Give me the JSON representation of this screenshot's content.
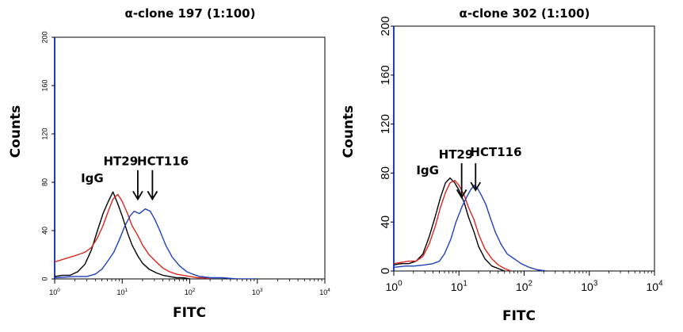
{
  "chart_data": [
    {
      "type": "line",
      "title": "α-clone 197 (1:100)",
      "xlabel": "FITC",
      "ylabel": "Counts",
      "xscale": "log",
      "xlim": [
        1,
        10000
      ],
      "ylim": [
        0,
        200
      ],
      "x_ticks": [
        {
          "base": "10",
          "exp": "0",
          "value": 1
        },
        {
          "base": "10",
          "exp": "1",
          "value": 10
        },
        {
          "base": "10",
          "exp": "2",
          "value": 100
        },
        {
          "base": "10",
          "exp": "3",
          "value": 1000
        },
        {
          "base": "10",
          "exp": "4",
          "value": 10000
        }
      ],
      "y_ticks": [
        {
          "label": "0",
          "value": 0
        },
        {
          "label": "40",
          "value": 40
        },
        {
          "label": "80",
          "value": 80
        },
        {
          "label": "120",
          "value": 120
        },
        {
          "label": "160",
          "value": 160
        },
        {
          "label": "200",
          "value": 200
        }
      ],
      "annotations": [
        {
          "text": "IgG",
          "x": 3.6,
          "y": 80
        },
        {
          "text": "HT29",
          "x": 9.5,
          "y": 94
        },
        {
          "text": "HCT116",
          "x": 40,
          "y": 94
        }
      ],
      "arrows": [
        {
          "x": 17,
          "y_from": 90,
          "y_to": 66
        },
        {
          "x": 28,
          "y_from": 90,
          "y_to": 66
        }
      ],
      "series": [
        {
          "name": "IgG",
          "color": "#000000",
          "x": [
            1,
            1.3,
            1.7,
            2.2,
            2.8,
            3.5,
            4.3,
            5.2,
            6.2,
            7.3,
            8.6,
            10,
            12,
            14,
            17,
            20,
            25,
            32,
            40,
            50,
            63,
            80,
            100
          ],
          "y": [
            2,
            3,
            3,
            6,
            12,
            24,
            40,
            54,
            64,
            72,
            62,
            52,
            38,
            28,
            19,
            13,
            8,
            5,
            3,
            2,
            1,
            1,
            0
          ]
        },
        {
          "name": "HT29",
          "color": "#d9261c",
          "x": [
            1,
            1.3,
            1.7,
            2.2,
            2.8,
            3.5,
            4.3,
            5.2,
            6.2,
            7.3,
            8.6,
            10,
            12,
            14,
            17,
            20,
            25,
            32,
            40,
            50,
            63,
            80,
            100,
            130,
            160,
            200
          ],
          "y": [
            14,
            16,
            18,
            20,
            22,
            26,
            34,
            44,
            56,
            66,
            70,
            64,
            54,
            44,
            36,
            28,
            20,
            14,
            9,
            6,
            4,
            3,
            2,
            1,
            1,
            0
          ]
        },
        {
          "name": "HCT116",
          "color": "#1f3fbf",
          "x": [
            1,
            2,
            3,
            4,
            5,
            6,
            7.5,
            9,
            11,
            13,
            15,
            18,
            22,
            26,
            30,
            36,
            44,
            55,
            70,
            90,
            110,
            140,
            200,
            300,
            500,
            1000
          ],
          "y": [
            1,
            2,
            2,
            4,
            8,
            14,
            22,
            32,
            44,
            52,
            56,
            54,
            58,
            56,
            50,
            40,
            28,
            18,
            11,
            6,
            4,
            2,
            1,
            1,
            0,
            0
          ]
        }
      ]
    },
    {
      "type": "line",
      "title": "α-clone 302 (1:100)",
      "xlabel": "FITC",
      "ylabel": "Counts",
      "xscale": "log",
      "xlim": [
        1,
        10000
      ],
      "ylim": [
        0,
        200
      ],
      "x_ticks": [
        {
          "base": "10",
          "exp": "0",
          "value": 1
        },
        {
          "base": "10",
          "exp": "1",
          "value": 10
        },
        {
          "base": "10",
          "exp": "2",
          "value": 100
        },
        {
          "base": "10",
          "exp": "3",
          "value": 1000
        },
        {
          "base": "10",
          "exp": "4",
          "value": 10000
        }
      ],
      "y_ticks": [
        {
          "label": "0",
          "value": 0
        },
        {
          "label": "40",
          "value": 40
        },
        {
          "label": "80",
          "value": 80
        },
        {
          "label": "120",
          "value": 120
        },
        {
          "label": "160",
          "value": 160
        },
        {
          "label": "200",
          "value": 200
        }
      ],
      "annotations": [
        {
          "text": "IgG",
          "x": 3.3,
          "y": 79
        },
        {
          "text": "HT29",
          "x": 9.0,
          "y": 92
        },
        {
          "text": "HCT116",
          "x": 37,
          "y": 94
        }
      ],
      "arrows": [
        {
          "x": 11,
          "y_from": 88,
          "y_to": 60
        },
        {
          "x": 18,
          "y_from": 88,
          "y_to": 66
        }
      ],
      "series": [
        {
          "name": "IgG",
          "color": "#000000",
          "x": [
            1,
            1.3,
            1.7,
            2.2,
            2.8,
            3.5,
            4.3,
            5.2,
            6.2,
            7.3,
            8.6,
            10,
            12,
            14,
            17,
            20,
            25,
            32,
            40,
            50
          ],
          "y": [
            5,
            6,
            6,
            8,
            14,
            28,
            44,
            60,
            72,
            76,
            72,
            66,
            56,
            44,
            32,
            20,
            10,
            4,
            2,
            0
          ]
        },
        {
          "name": "HT29",
          "color": "#d9261c",
          "x": [
            1,
            1.3,
            1.7,
            2.2,
            2.8,
            3.5,
            4.3,
            5.2,
            6.2,
            7.3,
            8.6,
            10,
            12,
            14,
            17,
            20,
            25,
            32,
            40,
            50,
            63
          ],
          "y": [
            6,
            7,
            8,
            8,
            12,
            22,
            36,
            52,
            64,
            72,
            74,
            70,
            62,
            52,
            42,
            30,
            18,
            10,
            5,
            2,
            0
          ]
        },
        {
          "name": "HCT116",
          "color": "#1f3fbf",
          "x": [
            1,
            1.5,
            2,
            3,
            4,
            5,
            6,
            7.5,
            9,
            11,
            13,
            15,
            17,
            19,
            22,
            26,
            30,
            36,
            44,
            55,
            70,
            90,
            120,
            160,
            220
          ],
          "y": [
            3,
            4,
            4,
            5,
            6,
            8,
            14,
            26,
            40,
            52,
            60,
            66,
            70,
            68,
            62,
            54,
            44,
            32,
            22,
            14,
            10,
            6,
            3,
            1,
            0
          ]
        }
      ]
    }
  ]
}
